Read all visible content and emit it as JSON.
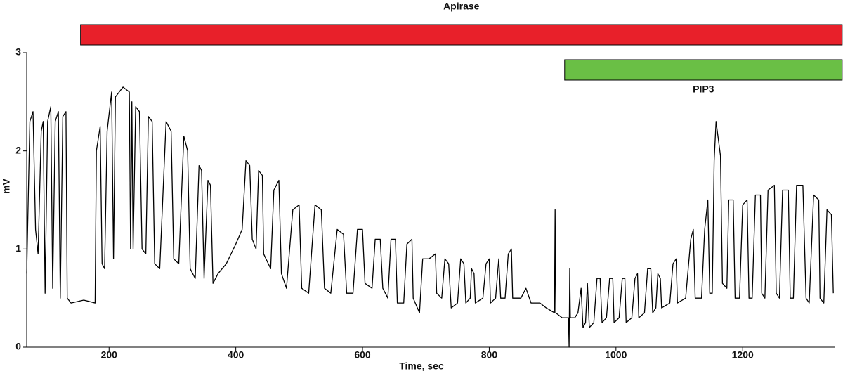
{
  "chart_data": {
    "type": "line",
    "x_label": "Time, sec",
    "y_label": "mV",
    "line_color": "#000000",
    "xlim": [
      70,
      1345
    ],
    "ylim": [
      0,
      3
    ],
    "xticks": [
      200,
      400,
      600,
      800,
      1000,
      1200
    ],
    "yticks": [
      0,
      1,
      2,
      3
    ],
    "bands": [
      {
        "label": "Apirase",
        "start": 155,
        "end": 1357,
        "color": "#e8202a"
      },
      {
        "label": "PIP3",
        "start": 919,
        "end": 1357,
        "color": "#6abf45"
      }
    ],
    "x": [
      70,
      75,
      80,
      84,
      88,
      93,
      96,
      99,
      103,
      108,
      111,
      115,
      120,
      123,
      127,
      132,
      134,
      140,
      160,
      178,
      180,
      186,
      189,
      193,
      197,
      204,
      207,
      210,
      222,
      232,
      234,
      236,
      238,
      242,
      248,
      252,
      258,
      262,
      268,
      272,
      280,
      290,
      298,
      302,
      310,
      318,
      324,
      328,
      336,
      342,
      346,
      350,
      356,
      360,
      364,
      372,
      385,
      400,
      410,
      416,
      422,
      426,
      432,
      436,
      442,
      444,
      455,
      460,
      468,
      472,
      480,
      490,
      500,
      504,
      515,
      525,
      535,
      540,
      550,
      560,
      570,
      575,
      585,
      592,
      600,
      604,
      615,
      620,
      628,
      632,
      640,
      645,
      652,
      655,
      665,
      670,
      678,
      680,
      690,
      695,
      705,
      715,
      717,
      725,
      730,
      736,
      740,
      750,
      755,
      760,
      763,
      770,
      772,
      776,
      778,
      790,
      795,
      800,
      802,
      810,
      815,
      818,
      825,
      830,
      835,
      837,
      850,
      858,
      866,
      880,
      890,
      903,
      904,
      905,
      915,
      925,
      926,
      927,
      928,
      935,
      940,
      945,
      948,
      952,
      955,
      958,
      965,
      970,
      975,
      978,
      985,
      990,
      995,
      997,
      1005,
      1010,
      1014,
      1016,
      1025,
      1030,
      1034,
      1036,
      1045,
      1050,
      1055,
      1058,
      1063,
      1066,
      1070,
      1072,
      1085,
      1090,
      1095,
      1097,
      1110,
      1118,
      1122,
      1125,
      1135,
      1140,
      1145,
      1148,
      1152,
      1155,
      1158,
      1165,
      1168,
      1175,
      1178,
      1185,
      1188,
      1195,
      1200,
      1207,
      1210,
      1215,
      1220,
      1228,
      1230,
      1235,
      1240,
      1250,
      1253,
      1258,
      1263,
      1272,
      1275,
      1280,
      1285,
      1295,
      1300,
      1305,
      1312,
      1320,
      1322,
      1328,
      1333,
      1340,
      1343
    ],
    "values": [
      0.75,
      2.3,
      2.4,
      1.2,
      0.95,
      2.2,
      2.3,
      0.55,
      2.3,
      2.45,
      0.6,
      2.3,
      2.4,
      0.5,
      2.35,
      2.4,
      0.5,
      0.45,
      0.48,
      0.45,
      2.0,
      2.25,
      0.85,
      0.8,
      2.2,
      2.6,
      0.9,
      2.55,
      2.65,
      2.6,
      1.0,
      2.5,
      1.0,
      2.45,
      2.4,
      1.0,
      0.95,
      2.35,
      2.3,
      0.85,
      0.8,
      2.3,
      2.2,
      0.9,
      0.85,
      2.15,
      2.0,
      0.8,
      0.7,
      1.85,
      1.8,
      0.7,
      1.7,
      1.65,
      0.65,
      0.75,
      0.85,
      1.05,
      1.2,
      1.9,
      1.85,
      1.1,
      1.0,
      1.8,
      1.75,
      0.95,
      0.8,
      1.6,
      1.7,
      0.75,
      0.6,
      1.4,
      1.45,
      0.6,
      0.55,
      1.45,
      1.4,
      0.6,
      0.55,
      1.2,
      1.15,
      0.55,
      0.55,
      1.2,
      1.2,
      0.65,
      0.6,
      1.1,
      1.1,
      0.6,
      0.5,
      1.1,
      1.1,
      0.45,
      0.45,
      1.05,
      1.1,
      0.5,
      0.35,
      0.9,
      0.9,
      0.95,
      0.55,
      0.5,
      0.9,
      0.85,
      0.4,
      0.45,
      0.9,
      0.85,
      0.45,
      0.5,
      0.8,
      0.75,
      0.45,
      0.5,
      0.85,
      0.9,
      0.45,
      0.5,
      0.9,
      0.5,
      0.5,
      0.95,
      1.0,
      0.5,
      0.5,
      0.6,
      0.45,
      0.45,
      0.4,
      0.35,
      1.4,
      0.35,
      0.3,
      0.3,
      0.0,
      0.8,
      0.3,
      0.3,
      0.35,
      0.6,
      0.2,
      0.25,
      0.65,
      0.2,
      0.25,
      0.7,
      0.7,
      0.25,
      0.3,
      0.7,
      0.7,
      0.25,
      0.3,
      0.7,
      0.7,
      0.25,
      0.3,
      0.7,
      0.75,
      0.3,
      0.35,
      0.8,
      0.8,
      0.35,
      0.4,
      0.75,
      0.7,
      0.4,
      0.45,
      0.85,
      0.9,
      0.45,
      0.5,
      1.1,
      1.2,
      0.5,
      0.5,
      1.2,
      1.5,
      0.55,
      0.55,
      1.9,
      2.3,
      1.95,
      0.65,
      0.6,
      1.5,
      1.5,
      0.5,
      0.5,
      1.45,
      1.5,
      0.5,
      0.5,
      1.55,
      1.55,
      0.55,
      0.5,
      1.6,
      1.65,
      0.55,
      0.5,
      1.6,
      1.6,
      0.5,
      0.5,
      1.65,
      1.65,
      0.5,
      0.45,
      1.55,
      1.5,
      0.5,
      0.45,
      1.4,
      1.35,
      0.55
    ]
  }
}
